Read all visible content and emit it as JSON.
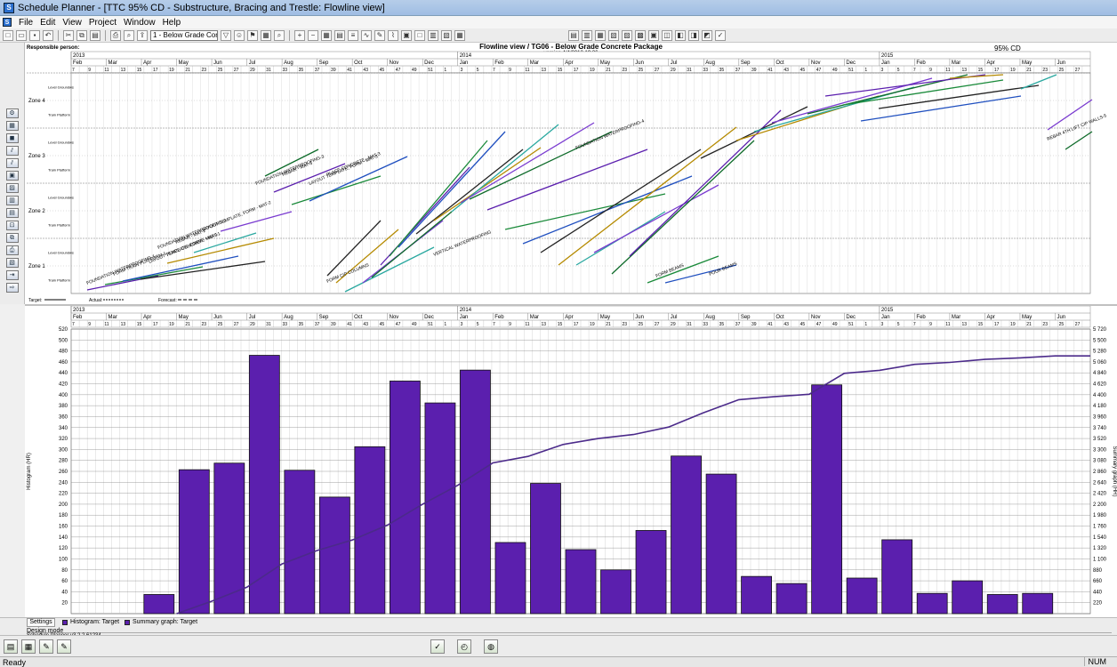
{
  "window": {
    "title": "Schedule Planner - [TTC 95% CD - Substructure, Bracing and Trestle: Flowline view]"
  },
  "menu": [
    "File",
    "Edit",
    "View",
    "Project",
    "Window",
    "Help"
  ],
  "toolbar": {
    "selected_package": "1 - Below Grade Concrete Pac"
  },
  "flowline": {
    "responsible_label": "Responsible person:",
    "title": "Flowline view / TG06 - Below Grade Concrete Package",
    "version": "version 4/4/2012 19:36",
    "corner_label": "95% CD",
    "years": [
      "2013",
      "2014",
      "2015"
    ],
    "months": [
      "Feb",
      "Mar",
      "Apr",
      "May",
      "Jun",
      "Jul",
      "Aug",
      "Sep",
      "Oct",
      "Nov",
      "Dec",
      "Jan",
      "Feb",
      "Mar",
      "Apr",
      "May",
      "Jun",
      "Jul",
      "Aug",
      "Sep",
      "Oct",
      "Nov",
      "Dec",
      "Jan",
      "Feb",
      "Mar",
      "Apr",
      "May",
      "Jun"
    ],
    "zones": [
      "Zone 4",
      "Zone 3",
      "Zone 2",
      "Zone 1"
    ],
    "zone_sub_labels": [
      "Level Groundws",
      "Train Platform"
    ],
    "legend": {
      "target": "Target:",
      "actual": "Actual:",
      "forecast": "Forecast:"
    },
    "activity_labels": [
      "FOUNDATION WATERPROOFING-1",
      "FORM TRAIN PLATFORM-1",
      "LAYOUT TEMPLATE, FORM - MAT-1",
      "PLACE CONCRETE - MAT-1",
      "FOUNDATION WATERPROOFING-2",
      "REBAR - MAT-2",
      "LAYOUT TEMPLATE, FORM - MAT-2",
      "FOUNDATION WATERPROOFING-3",
      "REBAR - MAT-3",
      "LAYOUT TEMPLATE, FORM - MAT-3",
      "PLACE CONCRETE - MAT-3",
      "FORM CIP COLUMNS",
      "VERTICAL WATERPROOFING",
      "FOUNDATION WATERPROOFING-4",
      "FORM BEAMS",
      "POUR BEAMS",
      "REBAR 4TH LIFT CIP WALLS-5"
    ]
  },
  "histogram": {
    "y_axis_label": "Histogram (HR)",
    "y2_axis_label": "Summary graph (HR)",
    "legend": {
      "histogram": "Histogram: Target",
      "summary": "Summary graph: Target"
    },
    "settings_label": "Settings"
  },
  "chart_data": {
    "type": "bar",
    "title": "",
    "categories": [
      "Apr 2013",
      "May 2013",
      "Jun 2013",
      "Jul 2013",
      "Aug 2013",
      "Sep 2013",
      "Oct 2013",
      "Nov 2013",
      "Dec 2013",
      "Jan 2014",
      "Feb 2014",
      "Mar 2014",
      "Apr 2014",
      "May 2014",
      "Jun 2014",
      "Jul 2014",
      "Aug 2014",
      "Sep 2014",
      "Oct 2014",
      "Nov 2014",
      "Dec 2014",
      "Jan 2015",
      "Feb 2015",
      "Mar 2015",
      "Apr 2015",
      "May 2015"
    ],
    "series": [
      {
        "name": "Histogram: Target",
        "type": "bar",
        "values": [
          35,
          263,
          275,
          472,
          262,
          213,
          305,
          425,
          385,
          445,
          130,
          238,
          117,
          80,
          152,
          288,
          255,
          68,
          55,
          418,
          65,
          135,
          37,
          60,
          35,
          37
        ]
      },
      {
        "name": "Summary graph: Target",
        "type": "line",
        "values": [
          0,
          250,
          530,
          1000,
          1270,
          1480,
          1780,
          2200,
          2580,
          3030,
          3160,
          3400,
          3520,
          3600,
          3750,
          4040,
          4300,
          4360,
          4410,
          4830,
          4890,
          5010,
          5050,
          5110,
          5140,
          5180
        ]
      }
    ],
    "ylim": [
      0,
      520
    ],
    "y2lim": [
      0,
      5720
    ],
    "y_ticks": [
      20,
      40,
      60,
      80,
      100,
      120,
      140,
      160,
      180,
      200,
      220,
      240,
      260,
      280,
      300,
      320,
      340,
      360,
      380,
      400,
      420,
      440,
      460,
      480,
      500,
      520
    ],
    "y2_ticks": [
      "220",
      "440",
      "660",
      "880",
      "1 100",
      "1 320",
      "1 540",
      "1 760",
      "1 980",
      "2 200",
      "2 420",
      "2 640",
      "2 860",
      "3 080",
      "3 300",
      "3 520",
      "3 740",
      "3 960",
      "4 180",
      "4 400",
      "4 620",
      "4 840",
      "5 060",
      "5 280",
      "5 500",
      "5 720"
    ],
    "grid": true,
    "colors": {
      "bar": "#5b1fae",
      "line": "#4b2a8a"
    }
  },
  "bottom": {
    "design_mode": "Design mode",
    "version": "Schedule Planner v3.2.2.61234"
  },
  "status": {
    "left": "Ready",
    "num": "NUM"
  }
}
